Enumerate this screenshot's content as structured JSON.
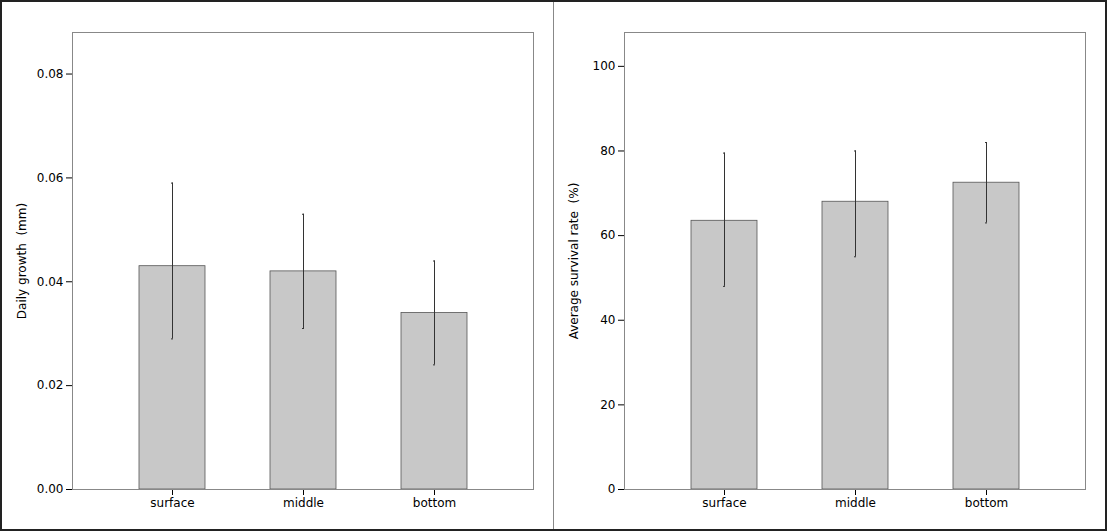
{
  "chart_data": [
    {
      "type": "bar",
      "categories": [
        "surface",
        "middle",
        "bottom"
      ],
      "values": [
        0.043,
        0.042,
        0.034
      ],
      "errors_upper": [
        0.016,
        0.011,
        0.01
      ],
      "errors_lower": [
        0.014,
        0.011,
        0.01
      ],
      "ylabel": "Daily growth  (mm)",
      "ylim": [
        0,
        0.088
      ],
      "yticks": [
        {
          "value": 0,
          "label": "0.00"
        },
        0.02,
        0.04,
        0.06,
        0.08
      ],
      "color": "#c8c8c8",
      "grid": false
    },
    {
      "type": "bar",
      "categories": [
        "surface",
        "middle",
        "bottom"
      ],
      "values": [
        63.5,
        68.0,
        72.5
      ],
      "errors_upper": [
        16.0,
        12.0,
        9.5
      ],
      "errors_lower": [
        15.5,
        13.0,
        9.5
      ],
      "ylabel": "Average survival rate  (%)",
      "ylim": [
        0,
        108
      ],
      "yticks": [
        0,
        20,
        40,
        60,
        80,
        100
      ],
      "color": "#c8c8c8",
      "grid": false
    }
  ]
}
